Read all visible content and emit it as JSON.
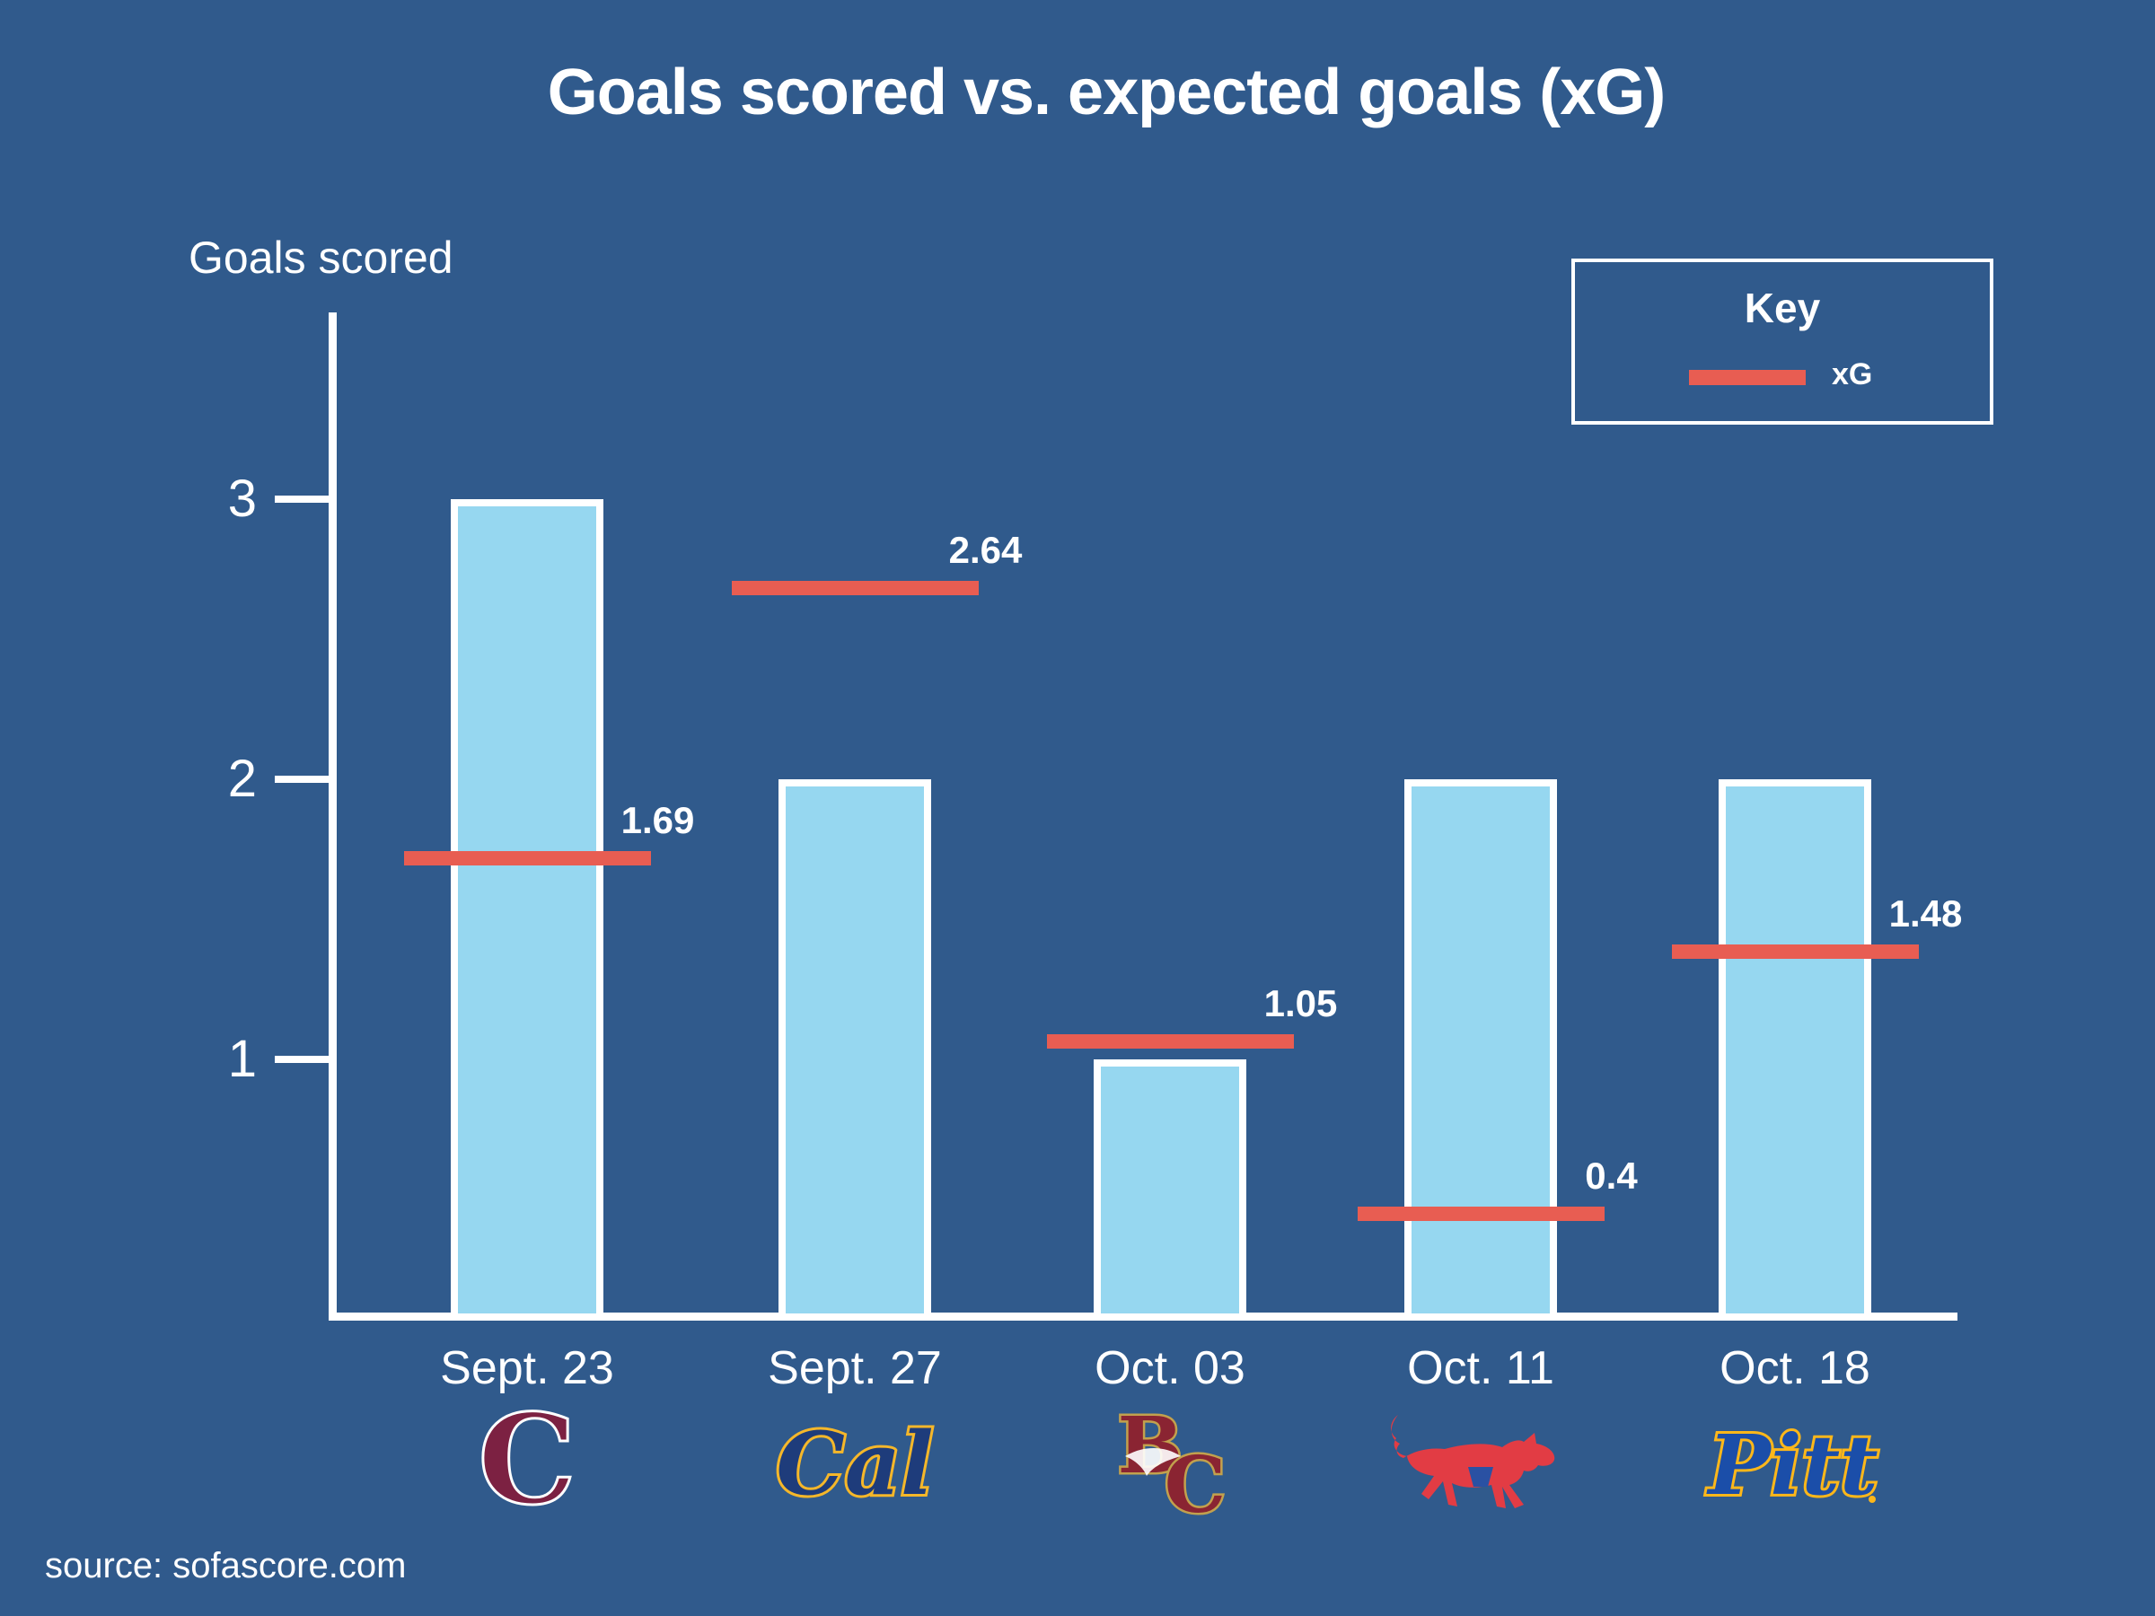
{
  "title": "Goals scored vs. expected goals (xG)",
  "y_axis_title": "Goals scored",
  "key": {
    "title": "Key",
    "xg_label": "xG"
  },
  "source": "source: sofascore.com",
  "colors": {
    "background": "#305A8C",
    "bar_fill": "#96D7F0",
    "bar_border": "#FFFFFF",
    "xg_line": "#E85D52",
    "text": "#FFFFFF"
  },
  "chart_data": {
    "type": "bar",
    "title": "Goals scored vs. expected goals (xG)",
    "xlabel": "",
    "ylabel": "Goals scored",
    "categories": [
      "Sept. 23",
      "Sept. 27",
      "Oct. 03",
      "Oct. 11",
      "Oct. 18"
    ],
    "series": [
      {
        "name": "Goals scored",
        "type": "bar",
        "values": [
          3,
          2,
          1,
          2,
          2
        ]
      },
      {
        "name": "xG",
        "type": "dash-line",
        "values": [
          1.69,
          2.64,
          1.05,
          0.4,
          1.48
        ]
      }
    ],
    "xg_value_labels": [
      "1.69",
      "2.64",
      "1.05",
      "0.4",
      "1.48"
    ],
    "yticks": [
      3,
      2,
      1
    ],
    "ylim": [
      0,
      3.65
    ],
    "grid": false,
    "legend_position": "top-right",
    "teams": [
      {
        "name": "Colgate",
        "icon": "colgate-c-logo-icon",
        "primary": "#7C2142",
        "outline": "#FFFFFF"
      },
      {
        "name": "Cal",
        "icon": "cal-script-logo-icon",
        "primary": "#1E3C7B",
        "outline": "#F5B72A"
      },
      {
        "name": "Boston College",
        "icon": "boston-college-bc-eagle-logo-icon",
        "primary": "#8A2432",
        "outline": "#C2A14D"
      },
      {
        "name": "SMU",
        "icon": "smu-mustang-logo-icon",
        "primary": "#E23C44",
        "outline": "#2A51A3"
      },
      {
        "name": "Pitt",
        "icon": "pitt-script-logo-icon",
        "primary": "#1B4EA9",
        "outline": "#FDB71A"
      }
    ]
  }
}
